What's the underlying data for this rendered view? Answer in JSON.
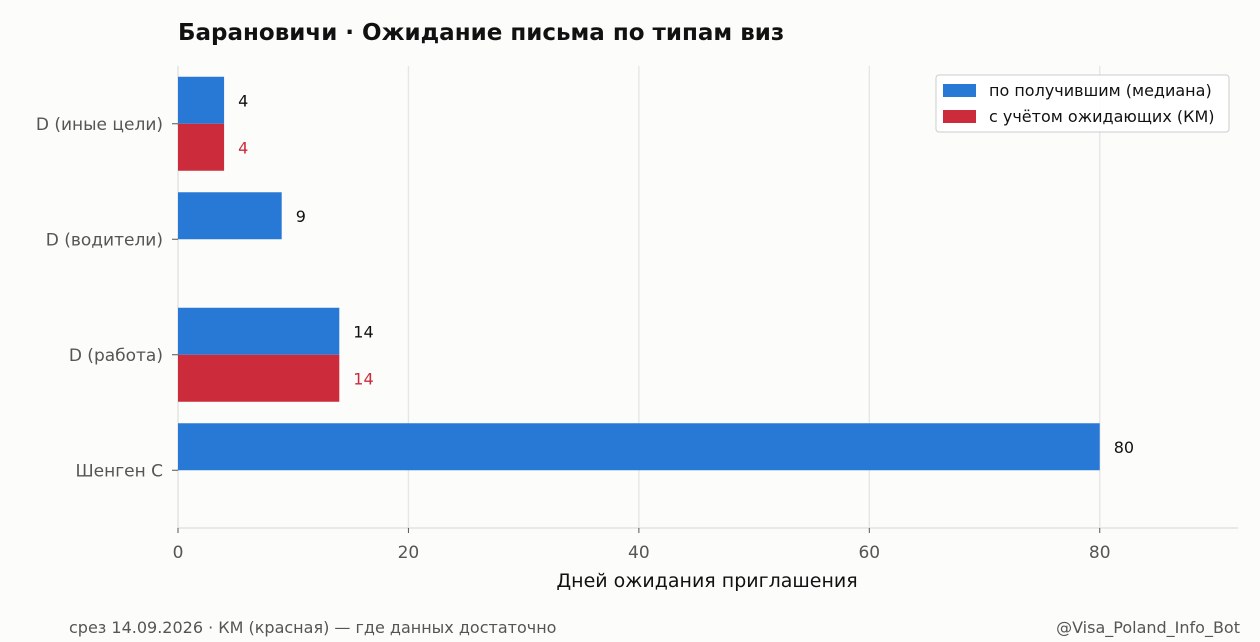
{
  "chart_data": {
    "type": "bar",
    "orientation": "horizontal",
    "title": "Барановичи · Ожидание письма по типам виз",
    "xlabel": "Дней ожидания приглашения",
    "ylabel": "",
    "xlim": [
      0,
      92
    ],
    "xticks": [
      0,
      20,
      40,
      60,
      80
    ],
    "grid": true,
    "legend_position": "top-right",
    "categories": [
      "D (иные цели)",
      "D (водители)",
      "D (работа)",
      "Шенген С"
    ],
    "series": [
      {
        "name": "по получившим (медиана)",
        "color": "#2878d6",
        "label_color": "#111111",
        "values": [
          4,
          9,
          14,
          80
        ]
      },
      {
        "name": "с учётом ожидающих (КМ)",
        "color": "#cc2b3b",
        "label_color": "#cc2b3b",
        "values": [
          4,
          null,
          14,
          null
        ]
      }
    ]
  },
  "footer": {
    "left": "срез 14.09.2026 · КМ (красная) — где данных достаточно",
    "right": "@Visa_Poland_Info_Bot"
  }
}
